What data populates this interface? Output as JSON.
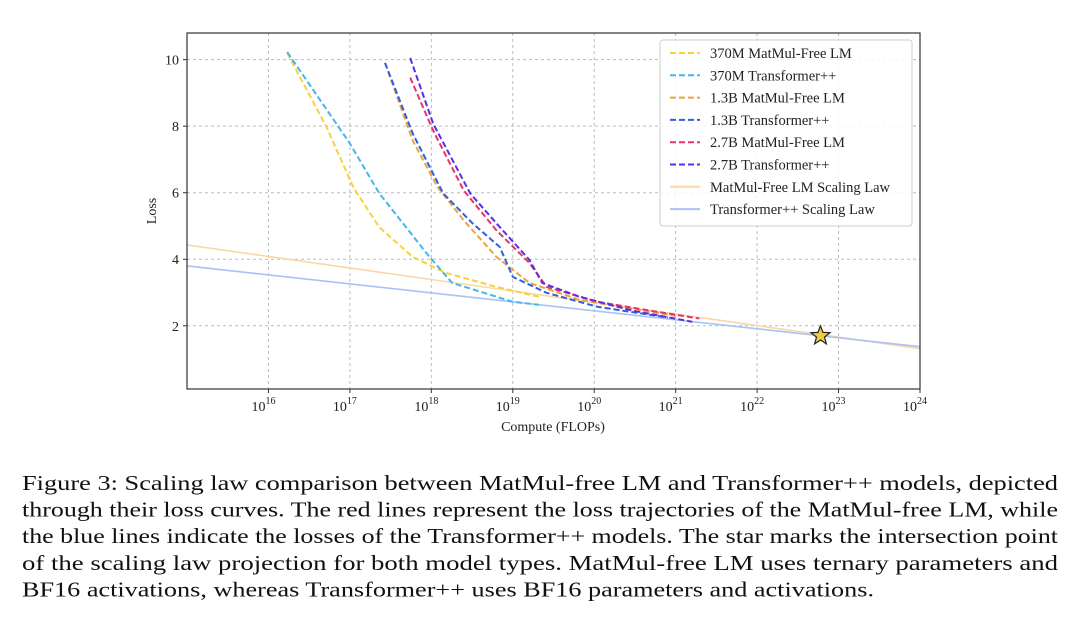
{
  "chart_data": {
    "type": "line",
    "title": "",
    "xlabel": "Compute (FLOPs)",
    "ylabel": "Loss",
    "xscale": "log",
    "xlim": [
      1000000000000000.0,
      1e+24
    ],
    "ylim": [
      0.1,
      10.8
    ],
    "grid": true,
    "legend_position": "top-right",
    "x_ticks": [
      1e+16,
      1e+17,
      1e+18,
      1e+19,
      1e+20,
      1e+21,
      1e+22,
      1e+23,
      1e+24
    ],
    "x_tick_labels": [
      {
        "base": "10",
        "exp": "16"
      },
      {
        "base": "10",
        "exp": "17"
      },
      {
        "base": "10",
        "exp": "18"
      },
      {
        "base": "10",
        "exp": "19"
      },
      {
        "base": "10",
        "exp": "20"
      },
      {
        "base": "10",
        "exp": "21"
      },
      {
        "base": "10",
        "exp": "22"
      },
      {
        "base": "10",
        "exp": "23"
      },
      {
        "base": "10",
        "exp": "24"
      }
    ],
    "y_ticks": [
      2,
      4,
      6,
      8,
      10
    ],
    "y_tick_labels": [
      "2",
      "4",
      "6",
      "8",
      "10"
    ],
    "series": [
      {
        "name": "370M MatMul-Free LM",
        "style": "dashed",
        "color": "#f7d23a",
        "x": [
          1.7e+16,
          5.2e+16,
          1.1e+17,
          2.3e+17,
          5.9e+17,
          1.5e+18,
          6.3e+18,
          2.1e+19
        ],
        "y": [
          10.2,
          7.96,
          6.16,
          4.96,
          4.07,
          3.59,
          3.17,
          2.87
        ]
      },
      {
        "name": "370M Transformer++",
        "style": "dashed",
        "color": "#45b6ea",
        "x": [
          1.7e+16,
          1e+17,
          2.3e+17,
          9.5e+17,
          1.8e+18,
          1e+19,
          2.1e+19
        ],
        "y": [
          10.23,
          7.48,
          5.98,
          4.07,
          3.29,
          2.72,
          2.63
        ]
      },
      {
        "name": "1.3B MatMul-Free LM",
        "style": "dashed",
        "color": "#eea23e",
        "x": [
          2.7e+17,
          5.9e+17,
          1.2e+18,
          2.5e+18,
          6.3e+18,
          1.6e+19,
          6.6e+19,
          3e+20,
          1e+21
        ],
        "y": [
          9.9,
          7.57,
          6.16,
          5.17,
          4.07,
          3.29,
          2.78,
          2.5,
          2.3
        ]
      },
      {
        "name": "1.3B Transformer++",
        "style": "dashed",
        "color": "#2f5fe0",
        "x": [
          2.7e+17,
          5.9e+17,
          1.4e+18,
          3.2e+18,
          6.9e+18,
          1e+19,
          2.6e+19,
          1.1e+20,
          8e+20
        ],
        "y": [
          9.9,
          7.78,
          5.98,
          5.08,
          4.37,
          3.47,
          2.99,
          2.57,
          2.25
        ]
      },
      {
        "name": "2.7B MatMul-Free LM",
        "style": "dashed",
        "color": "#e6336a",
        "x": [
          5.5e+17,
          1.05e+18,
          2.5e+18,
          6.3e+18,
          1.6e+19,
          2.6e+19,
          1.1e+20,
          5e+20,
          1.95e+21
        ],
        "y": [
          9.46,
          7.87,
          6.07,
          4.87,
          3.89,
          3.17,
          2.72,
          2.45,
          2.22
        ]
      },
      {
        "name": "2.7B Transformer++",
        "style": "dashed",
        "color": "#5a2de6",
        "x": [
          5.5e+17,
          1.05e+18,
          3e+18,
          6.3e+18,
          1.6e+19,
          2.3e+19,
          6.6e+19,
          3e+20,
          1.6e+21
        ],
        "y": [
          10.05,
          8.08,
          5.98,
          5.08,
          3.98,
          3.29,
          2.87,
          2.45,
          2.12
        ]
      },
      {
        "name": "MatMul-Free LM Scaling Law",
        "style": "solid",
        "color": "#fbd7a6",
        "x": [
          1000000000000000.0,
          1e+24
        ],
        "y": [
          4.43,
          1.31
        ]
      },
      {
        "name": "Transformer++ Scaling Law",
        "style": "solid",
        "color": "#a9c3f3",
        "x": [
          1000000000000000.0,
          1e+24
        ],
        "y": [
          3.8,
          1.37
        ]
      }
    ],
    "annotations": [
      {
        "type": "star-marker",
        "x": 6e+22,
        "y": 1.7,
        "color": "#f2cc3c"
      }
    ]
  },
  "caption": {
    "lines": [
      "Figure 3: Scaling law comparison between MatMul-free LM and Transformer++ models, depicted",
      "through their loss curves. The red lines represent the loss trajectories of the MatMul-free LM, while",
      "the blue lines indicate the losses of the Transformer++ models. The star marks the intersection point",
      "of the scaling law projection for both model types. MatMul-free LM uses ternary parameters and",
      "BF16 activations, whereas Transformer++ uses BF16 parameters and activations."
    ]
  }
}
